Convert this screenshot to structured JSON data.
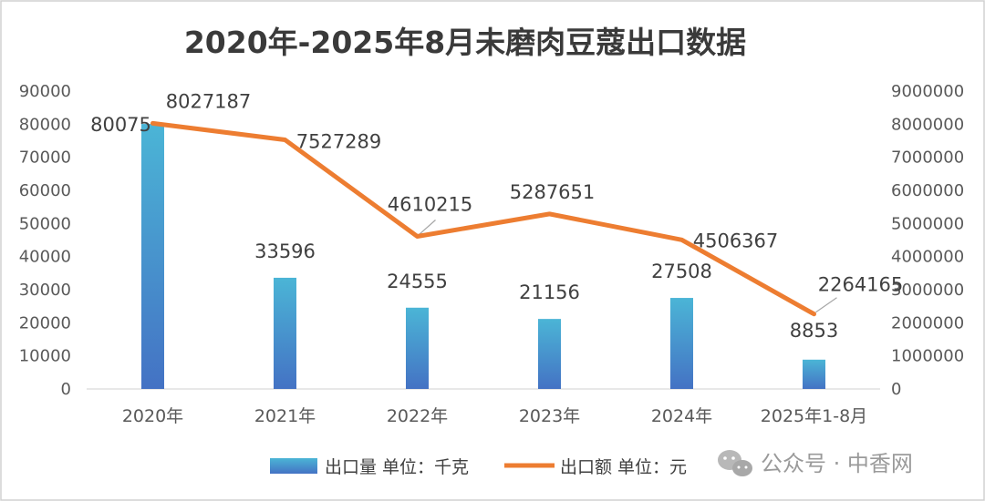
{
  "chart_data": {
    "type": "bar+line",
    "title": "2020年-2025年8月未磨肉豆蔻出口数据",
    "categories": [
      "2020年",
      "2021年",
      "2022年",
      "2023年",
      "2024年",
      "2025年1-8月"
    ],
    "series": [
      {
        "name": "出口量 单位：千克",
        "type": "bar",
        "axis": "left",
        "values": [
          80075,
          33596,
          24555,
          21156,
          27508,
          8853
        ],
        "labels": [
          "80075",
          "33596",
          "24555",
          "21156",
          "27508",
          "8853"
        ],
        "color_top": "#4bb5d6",
        "color_bottom": "#4472c4"
      },
      {
        "name": "出口额 单位：元",
        "type": "line",
        "axis": "right",
        "values": [
          8027187,
          7527289,
          4610215,
          5287651,
          4506367,
          2264165
        ],
        "labels": [
          "8027187",
          "7527289",
          "4610215",
          "5287651",
          "4506367",
          "2264165"
        ],
        "color": "#ed7d31"
      }
    ],
    "ylim_left": [
      0,
      90000
    ],
    "ylim_right": [
      0,
      9000000
    ],
    "yticks_left": [
      "0",
      "10000",
      "20000",
      "30000",
      "40000",
      "50000",
      "60000",
      "70000",
      "80000",
      "90000"
    ],
    "yticks_right": [
      "0",
      "1000000",
      "2000000",
      "3000000",
      "4000000",
      "5000000",
      "6000000",
      "7000000",
      "8000000",
      "9000000"
    ],
    "legend_position": "bottom",
    "grid": false
  },
  "watermark": {
    "text": "公众号 · 中香网",
    "icon": "wechat-icon"
  }
}
